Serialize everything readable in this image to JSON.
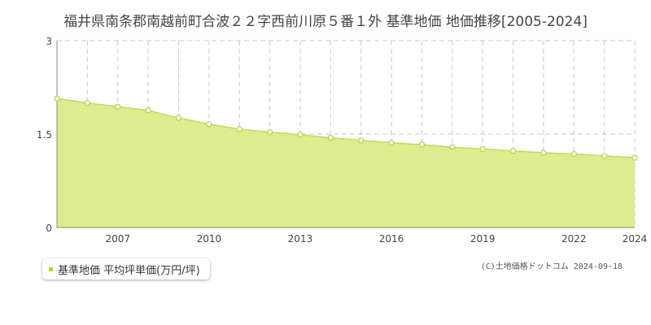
{
  "page": {
    "title": "福井県南条郡南越前町合波２２字西前川原５番１外 基準地価 地価推移[2005-2024]",
    "copyright": "(C)土地価格ドットコム 2024-09-18"
  },
  "legend": {
    "label": "基準地価 平均坪単価(万円/坪)"
  },
  "colors": {
    "fill": "#dcec8e",
    "line": "#c4dd4a",
    "marker_edge": "#b6cf3c",
    "legend_swatch": "#b5d333",
    "grid": "#c8c8c8",
    "axis_text": "#444444"
  },
  "chart_data": {
    "type": "area",
    "title": "福井県南条郡南越前町合波２２字西前川原５番１外 基準地価 地価推移[2005-2024]",
    "x": [
      2005,
      2006,
      2007,
      2008,
      2009,
      2010,
      2011,
      2012,
      2013,
      2014,
      2015,
      2016,
      2017,
      2018,
      2019,
      2020,
      2021,
      2022,
      2023,
      2024
    ],
    "series": [
      {
        "name": "基準地価 平均坪単価(万円/坪)",
        "values": [
          2.07,
          2.0,
          1.94,
          1.88,
          1.76,
          1.66,
          1.58,
          1.53,
          1.49,
          1.44,
          1.4,
          1.36,
          1.33,
          1.29,
          1.26,
          1.23,
          1.2,
          1.18,
          1.15,
          1.12
        ]
      }
    ],
    "xlim": [
      2005,
      2024
    ],
    "ylim": [
      0,
      3
    ],
    "yticks": [
      "0",
      "1.5",
      "3"
    ],
    "xticks": [
      "2007",
      "2010",
      "2013",
      "2016",
      "2019",
      "2022",
      "2024"
    ],
    "xtick_values": [
      2007,
      2010,
      2013,
      2016,
      2019,
      2022,
      2024
    ],
    "ytick_values": [
      0,
      1.5,
      3
    ],
    "grid": true,
    "legend_position": "bottom-left"
  }
}
